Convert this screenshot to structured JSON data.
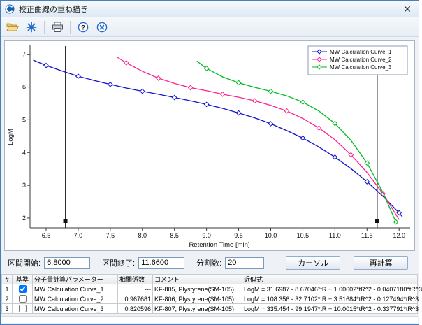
{
  "window": {
    "title": "校正曲線の重ね描き",
    "close_glyph": "✕"
  },
  "toolbar": {
    "icons": [
      "open-icon",
      "overlay-plot-icon",
      "print-icon",
      "help-icon",
      "close-icon"
    ],
    "help_glyph": "?"
  },
  "chart_data": {
    "type": "line",
    "title": "",
    "xlabel": "Retention Time [min]",
    "ylabel": "LogM",
    "xlim": [
      6.25,
      12.15
    ],
    "ylim": [
      1.7,
      7.25
    ],
    "xticks": [
      6.5,
      7.0,
      7.5,
      8.0,
      8.5,
      9.0,
      9.5,
      10.0,
      10.5,
      11.0,
      11.5,
      12.0
    ],
    "yticks": [
      2,
      3,
      4,
      5,
      6,
      7
    ],
    "grid": false,
    "legend_position": "top-right",
    "cursors": [
      6.8,
      11.66
    ],
    "series": [
      {
        "name": "MW Calculation Curve_1",
        "color": "#1212cc",
        "marker": "diamond",
        "marker_every": 2,
        "x": [
          6.3,
          6.5,
          6.75,
          7.0,
          7.25,
          7.5,
          7.75,
          8.0,
          8.25,
          8.5,
          8.75,
          9.0,
          9.25,
          9.5,
          9.75,
          10.0,
          10.25,
          10.5,
          10.75,
          11.0,
          11.25,
          11.5,
          11.75,
          12.0,
          12.05
        ],
        "y": [
          6.82,
          6.66,
          6.49,
          6.33,
          6.2,
          6.08,
          5.97,
          5.87,
          5.78,
          5.68,
          5.58,
          5.47,
          5.35,
          5.21,
          5.06,
          4.88,
          4.67,
          4.44,
          4.17,
          3.86,
          3.51,
          3.11,
          2.66,
          2.16,
          2.04
        ]
      },
      {
        "name": "MW Calculation Curve_2",
        "color": "#ff2090",
        "marker": "diamond",
        "marker_every": 2,
        "x": [
          7.6,
          7.75,
          8.0,
          8.25,
          8.5,
          8.75,
          9.0,
          9.25,
          9.5,
          9.75,
          10.0,
          10.25,
          10.5,
          10.75,
          11.0,
          11.25,
          11.5,
          11.75,
          12.0
        ],
        "y": [
          6.92,
          6.74,
          6.48,
          6.27,
          6.11,
          5.98,
          5.89,
          5.78,
          5.69,
          5.58,
          5.44,
          5.27,
          5.04,
          4.75,
          4.39,
          3.93,
          3.39,
          2.74,
          1.95
        ]
      },
      {
        "name": "MW Calculation Curve_3",
        "color": "#00bb22",
        "marker": "diamond",
        "marker_every": 2,
        "x": [
          8.85,
          9.0,
          9.25,
          9.5,
          9.75,
          10.0,
          10.25,
          10.5,
          10.75,
          11.0,
          11.25,
          11.5,
          11.75,
          11.95
        ],
        "y": [
          6.79,
          6.57,
          6.31,
          6.13,
          5.99,
          5.87,
          5.73,
          5.54,
          5.27,
          4.89,
          4.37,
          3.68,
          2.77,
          1.88
        ]
      }
    ]
  },
  "controls": {
    "interval_start_label": "区間開始:",
    "interval_start_value": "6.8000",
    "interval_end_label": "区間終了:",
    "interval_end_value": "11.6600",
    "divisions_label": "分割数:",
    "divisions_value": "20",
    "cursor_button_label": "カーソル",
    "recalc_button_label": "再計算"
  },
  "table": {
    "headers": [
      "#",
      "基準",
      "分子量計算パラメーター",
      "相関係数",
      "コメント",
      "近似式"
    ],
    "rows": [
      {
        "num": "1",
        "baseline_checked": true,
        "parameter": "MW Calculation Curve_1",
        "correlation": "---",
        "comment": "KF-805, Plystyrene(SM-105)",
        "formula": "LogM = 31.6987 - 8.67046*tR + 1.00602*tR^2 - 0.0407180*tR^3"
      },
      {
        "num": "2",
        "baseline_checked": false,
        "parameter": "MW Calculation Curve_2",
        "correlation": "0.967681",
        "comment": "KF-806, Plystyrene(SM-105)",
        "formula": "LogM = 108.356 - 32.7102*tR + 3.51684*tR^2 - 0.127494*tR^3"
      },
      {
        "num": "3",
        "baseline_checked": false,
        "parameter": "MW Calculation Curve_3",
        "correlation": "0.820596",
        "comment": "KF-807, Plystyrene(SM-105)",
        "formula": "LogM = 335.454 - 99.1947*tR + 10.0015*tR^2 - 0.337791*tR^3"
      }
    ]
  }
}
